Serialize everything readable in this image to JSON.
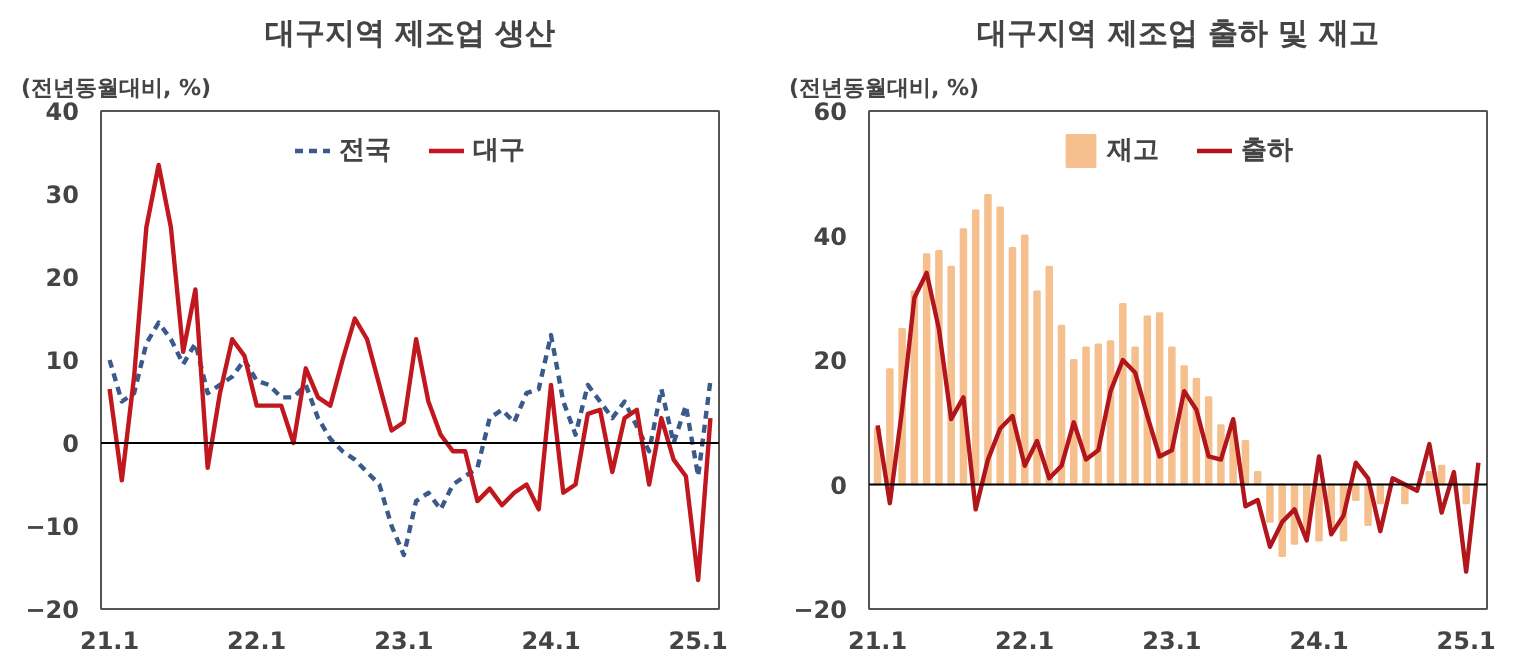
{
  "chart_data": [
    {
      "type": "line",
      "title": "대구지역 제조업 생산",
      "ylabel": "(전년동월대비, %)",
      "categories": [
        "21.1",
        null,
        null,
        null,
        null,
        null,
        null,
        null,
        null,
        null,
        null,
        null,
        "22.1",
        null,
        null,
        null,
        null,
        null,
        null,
        null,
        null,
        null,
        null,
        null,
        "23.1",
        null,
        null,
        null,
        null,
        null,
        null,
        null,
        null,
        null,
        null,
        null,
        "24.1",
        null,
        null,
        null,
        null,
        null,
        null,
        null,
        null,
        null,
        null,
        null,
        "25.1",
        null
      ],
      "series": [
        {
          "name": "전국",
          "color": "#3a5a8c",
          "line_style": "dashed",
          "values": [
            10,
            5,
            6,
            12,
            14.5,
            12.5,
            9.5,
            12,
            6,
            7,
            8,
            10,
            7.5,
            7,
            5.5,
            5.5,
            7,
            3,
            0.5,
            -1,
            -2,
            -3.5,
            -5,
            -10,
            -13.5,
            -7,
            -6,
            -8,
            -5,
            -4,
            -3,
            3,
            4,
            2.5,
            6,
            6.5,
            13,
            5,
            1,
            7,
            5,
            3,
            5,
            2,
            -1,
            6.5,
            0,
            4.5,
            -4,
            7.5
          ]
        },
        {
          "name": "대구",
          "color": "#c0181e",
          "line_style": "solid",
          "values": [
            6.5,
            -4.5,
            8,
            26,
            33.5,
            26,
            11,
            18.5,
            -3,
            6,
            12.5,
            10.5,
            4.5,
            4.5,
            4.5,
            0,
            9,
            5.5,
            4.5,
            10,
            15,
            12.5,
            7,
            1.5,
            2.5,
            12.5,
            5,
            1,
            -1,
            -1,
            -7,
            -5.5,
            -7.5,
            -6,
            -5,
            -8,
            7,
            -6,
            -5,
            3.5,
            4,
            -3.5,
            3,
            4,
            -5,
            3,
            -2,
            -4,
            -16.5,
            3
          ]
        }
      ],
      "ylim": [
        -20,
        40
      ],
      "yticks": [
        -20,
        -10,
        0,
        10,
        20,
        30,
        40
      ],
      "grid": false,
      "legend": "top",
      "ref_lines": [
        {
          "axis": "y",
          "value": 0,
          "color": "#000000"
        }
      ]
    },
    {
      "type": "bar",
      "title": "대구지역 제조업 출하 및 재고",
      "ylabel": "(전년동월대비, %)",
      "categories": [
        "21.1",
        null,
        null,
        null,
        null,
        null,
        null,
        null,
        null,
        null,
        null,
        null,
        "22.1",
        null,
        null,
        null,
        null,
        null,
        null,
        null,
        null,
        null,
        null,
        null,
        "23.1",
        null,
        null,
        null,
        null,
        null,
        null,
        null,
        null,
        null,
        null,
        null,
        "24.1",
        null,
        null,
        null,
        null,
        null,
        null,
        null,
        null,
        null,
        null,
        null,
        "25.1",
        null
      ],
      "series": [
        {
          "name": "재고",
          "type": "bar",
          "color": "#f5c08e",
          "values": [
            9,
            18.5,
            25,
            31,
            37,
            37.5,
            35,
            41,
            44,
            46.5,
            44.5,
            38,
            40,
            31,
            35,
            25.5,
            20,
            22,
            22.5,
            23,
            29,
            22,
            27,
            27.5,
            22,
            19,
            17,
            14,
            9.5,
            10,
            7,
            2,
            -6,
            -11.5,
            -9.5,
            -8,
            -9,
            -7,
            -9,
            -2.5,
            -6.5,
            -3,
            null,
            -3,
            null,
            2,
            3,
            null,
            -3,
            null
          ]
        },
        {
          "name": "출하",
          "type": "line",
          "color": "#b0161c",
          "values": [
            9.5,
            -3,
            12,
            30,
            34,
            25,
            10.5,
            14,
            -4,
            4,
            9,
            11,
            3,
            7,
            1,
            3,
            10,
            4,
            5.5,
            15,
            20,
            18,
            11,
            4.5,
            5.5,
            15,
            12,
            4.5,
            4,
            10.5,
            -3.5,
            -2.5,
            -10,
            -6,
            -4,
            -9,
            4.5,
            -8,
            -5,
            3.5,
            1,
            -7.5,
            1,
            0,
            -1,
            6.5,
            -4.5,
            2,
            -14,
            3.5
          ]
        }
      ],
      "ylim": [
        -20,
        60
      ],
      "yticks": [
        -20,
        0,
        20,
        40,
        60
      ],
      "grid": false,
      "legend": "top",
      "ref_lines": [
        {
          "axis": "y",
          "value": 0,
          "color": "#000000"
        }
      ]
    }
  ]
}
